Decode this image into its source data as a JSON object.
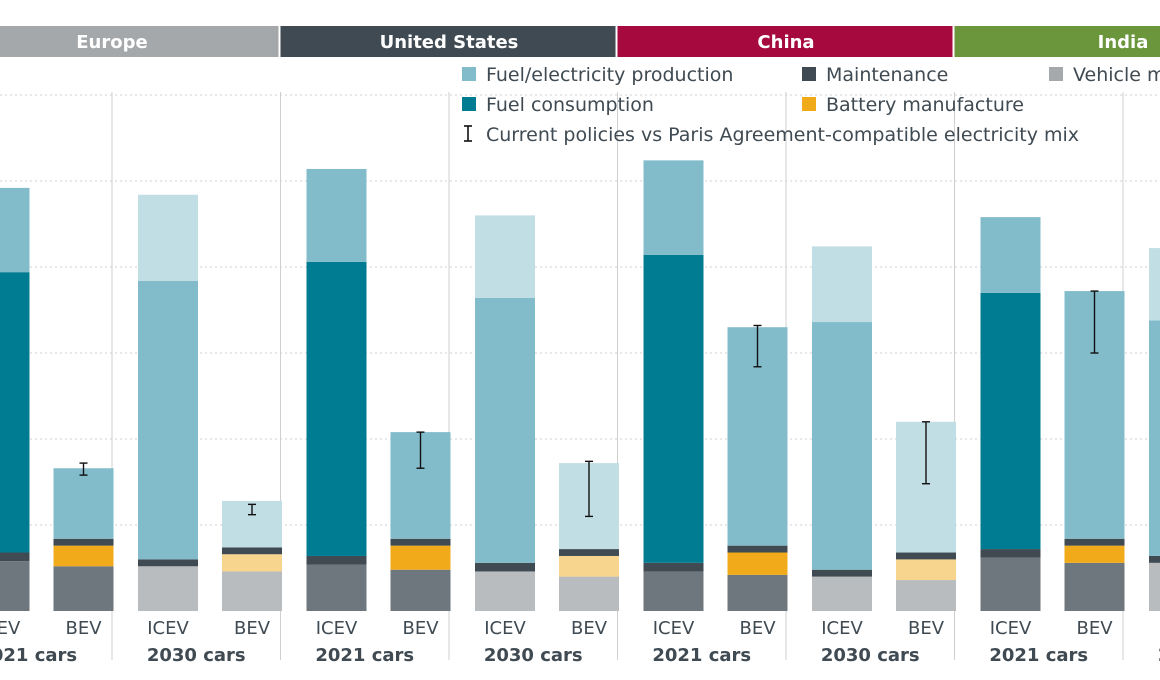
{
  "colors": {
    "fuel_production": "#82bccb",
    "fuel_production_light": "#c1dee5",
    "fuel_consumption": "#007c92",
    "maintenance": "#3f4a52",
    "battery": "#f1ab1a",
    "battery_light": "#f8d58e",
    "vehicle": "#6f777e",
    "vehicle_light": "#b9bcbf",
    "vehicle_legend": "#a6a9ab",
    "grid": "#cfcfcf",
    "europe": "#a5a8aa",
    "united_states": "#3f4a52",
    "china": "#a6093d",
    "india": "#6b963c"
  },
  "regions": [
    {
      "name": "Europe"
    },
    {
      "name": "United States"
    },
    {
      "name": "China"
    },
    {
      "name": "India"
    }
  ],
  "legend": {
    "items": [
      {
        "label": "Fuel/electricity production",
        "key": "fuel_production",
        "kind": "box"
      },
      {
        "label": "Maintenance",
        "key": "maintenance",
        "kind": "box"
      },
      {
        "label": "Vehicle manufacture",
        "key": "vehicle_legend",
        "kind": "box"
      },
      {
        "label": "Fuel consumption",
        "key": "fuel_consumption",
        "kind": "box"
      },
      {
        "label": "Battery manufacture",
        "key": "battery",
        "kind": "box"
      },
      {
        "label": "Current policies vs Paris Agreement-compatible electricity mix",
        "key": "maintenance",
        "kind": "errorbar"
      }
    ]
  },
  "chart_data": {
    "type": "bar",
    "stacked": true,
    "grid": true,
    "y_gridlines": [
      0,
      50,
      100,
      150,
      200,
      250,
      300
    ],
    "ylim": [
      0,
      305
    ],
    "x_labels": [
      "ICEV",
      "BEV"
    ],
    "group_labels": [
      "2021 cars",
      "2030 cars"
    ],
    "stack_order": [
      "vehicle",
      "battery",
      "maintenance",
      "fuel_consumption",
      "fuel_production"
    ],
    "bars": [
      {
        "region": "Europe",
        "group": "2021 cars",
        "type": "ICEV",
        "vehicle": 29,
        "battery": 0,
        "maintenance": 5,
        "fuel_consumption": 163,
        "fuel_production": 49
      },
      {
        "region": "Europe",
        "group": "2021 cars",
        "type": "BEV",
        "vehicle": 26,
        "battery": 12,
        "maintenance": 4,
        "fuel_consumption": 0,
        "fuel_production": 41,
        "error": [
          79,
          86
        ]
      },
      {
        "region": "Europe",
        "group": "2030 cars",
        "type": "ICEV",
        "vehicle": 26,
        "battery": 0,
        "maintenance": 4,
        "fuel_consumption": 0,
        "fuel_production": 162,
        "fuel_production_future": 50
      },
      {
        "region": "Europe",
        "group": "2030 cars",
        "type": "BEV",
        "vehicle": 23,
        "battery": 10,
        "maintenance": 4,
        "fuel_consumption": 0,
        "fuel_production": 0,
        "fuel_production_future": 27,
        "error": [
          56,
          62
        ]
      },
      {
        "region": "United States",
        "group": "2021 cars",
        "type": "ICEV",
        "vehicle": 27,
        "battery": 0,
        "maintenance": 5,
        "fuel_consumption": 171,
        "fuel_production": 54
      },
      {
        "region": "United States",
        "group": "2021 cars",
        "type": "BEV",
        "vehicle": 24,
        "battery": 14,
        "maintenance": 4,
        "fuel_consumption": 0,
        "fuel_production": 62,
        "error": [
          83,
          104
        ]
      },
      {
        "region": "United States",
        "group": "2030 cars",
        "type": "ICEV",
        "vehicle": 23,
        "battery": 0,
        "maintenance": 5,
        "fuel_consumption": 0,
        "fuel_production": 154,
        "fuel_production_future": 48
      },
      {
        "region": "United States",
        "group": "2030 cars",
        "type": "BEV",
        "vehicle": 20,
        "battery": 12,
        "maintenance": 4,
        "fuel_consumption": 0,
        "fuel_production": 0,
        "fuel_production_future": 50,
        "error": [
          55,
          87
        ]
      },
      {
        "region": "China",
        "group": "2021 cars",
        "type": "ICEV",
        "vehicle": 23,
        "battery": 0,
        "maintenance": 5,
        "fuel_consumption": 179,
        "fuel_production": 55
      },
      {
        "region": "China",
        "group": "2021 cars",
        "type": "BEV",
        "vehicle": 21,
        "battery": 13,
        "maintenance": 4,
        "fuel_consumption": 0,
        "fuel_production": 127,
        "error": [
          142,
          166
        ]
      },
      {
        "region": "China",
        "group": "2030 cars",
        "type": "ICEV",
        "vehicle": 20,
        "battery": 0,
        "maintenance": 4,
        "fuel_consumption": 0,
        "fuel_production": 144,
        "fuel_production_future": 44
      },
      {
        "region": "China",
        "group": "2030 cars",
        "type": "BEV",
        "vehicle": 18,
        "battery": 12,
        "maintenance": 4,
        "fuel_consumption": 0,
        "fuel_production": 0,
        "fuel_production_future": 76,
        "error": [
          74,
          110
        ]
      },
      {
        "region": "India",
        "group": "2021 cars",
        "type": "ICEV",
        "vehicle": 31,
        "battery": 0,
        "maintenance": 5,
        "fuel_consumption": 149,
        "fuel_production": 44
      },
      {
        "region": "India",
        "group": "2021 cars",
        "type": "BEV",
        "vehicle": 28,
        "battery": 10,
        "maintenance": 4,
        "fuel_consumption": 0,
        "fuel_production": 144,
        "error": [
          150,
          186
        ]
      },
      {
        "region": "India",
        "group": "2030 cars",
        "type": "ICEV",
        "vehicle": 28,
        "battery": 0,
        "maintenance": 4,
        "fuel_consumption": 0,
        "fuel_production": 137,
        "fuel_production_future": 42
      }
    ]
  }
}
